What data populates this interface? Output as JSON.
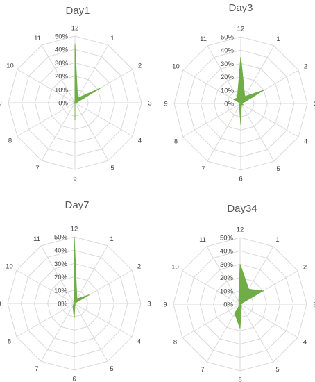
{
  "chart_data": [
    {
      "type": "radar",
      "title": "Day1",
      "categories": [
        "12",
        "1",
        "2",
        "3",
        "4",
        "5",
        "6",
        "7",
        "8",
        "9",
        "10",
        "11"
      ],
      "values": [
        0.44,
        0.04,
        0.22,
        0.01,
        0.01,
        0.0,
        0.13,
        0.0,
        0.0,
        0.0,
        0.01,
        0.0
      ],
      "ticks": [
        "0%",
        "10%",
        "20%",
        "30%",
        "40%",
        "50%"
      ],
      "rmax": 0.5,
      "fill_color": "#70AD47",
      "grid_color": "#d9d9d9"
    },
    {
      "type": "radar",
      "title": "Day3",
      "categories": [
        "12",
        "1",
        "2",
        "3",
        "4",
        "5",
        "6",
        "7",
        "8",
        "9",
        "10",
        "11"
      ],
      "values": [
        0.35,
        0.06,
        0.2,
        0.01,
        0.02,
        0.01,
        0.16,
        0.02,
        0.01,
        0.0,
        0.06,
        0.05
      ],
      "ticks": [
        "0%",
        "10%",
        "20%",
        "30%",
        "40%",
        "50%"
      ],
      "rmax": 0.5,
      "fill_color": "#70AD47",
      "grid_color": "#d9d9d9"
    },
    {
      "type": "radar",
      "title": "Day7",
      "categories": [
        "12",
        "1",
        "2",
        "3",
        "4",
        "5",
        "6",
        "7",
        "8",
        "9",
        "10",
        "11"
      ],
      "values": [
        0.5,
        0.04,
        0.13,
        0.0,
        0.01,
        0.01,
        0.11,
        0.02,
        0.0,
        0.0,
        0.0,
        0.0
      ],
      "ticks": [
        "0%",
        "10%",
        "20%",
        "30%",
        "40%",
        "50%"
      ],
      "rmax": 0.5,
      "fill_color": "#70AD47",
      "grid_color": "#d9d9d9"
    },
    {
      "type": "radar",
      "title": "Day34",
      "categories": [
        "12",
        "1",
        "2",
        "3",
        "4",
        "5",
        "6",
        "7",
        "8",
        "9",
        "10",
        "11"
      ],
      "values": [
        0.3,
        0.13,
        0.2,
        0.0,
        0.01,
        0.02,
        0.18,
        0.08,
        0.0,
        0.0,
        0.0,
        0.02
      ],
      "ticks": [
        "0%",
        "10%",
        "20%",
        "30%",
        "40%",
        "50%"
      ],
      "rmax": 0.5,
      "fill_color": "#70AD47",
      "grid_color": "#d9d9d9"
    }
  ]
}
